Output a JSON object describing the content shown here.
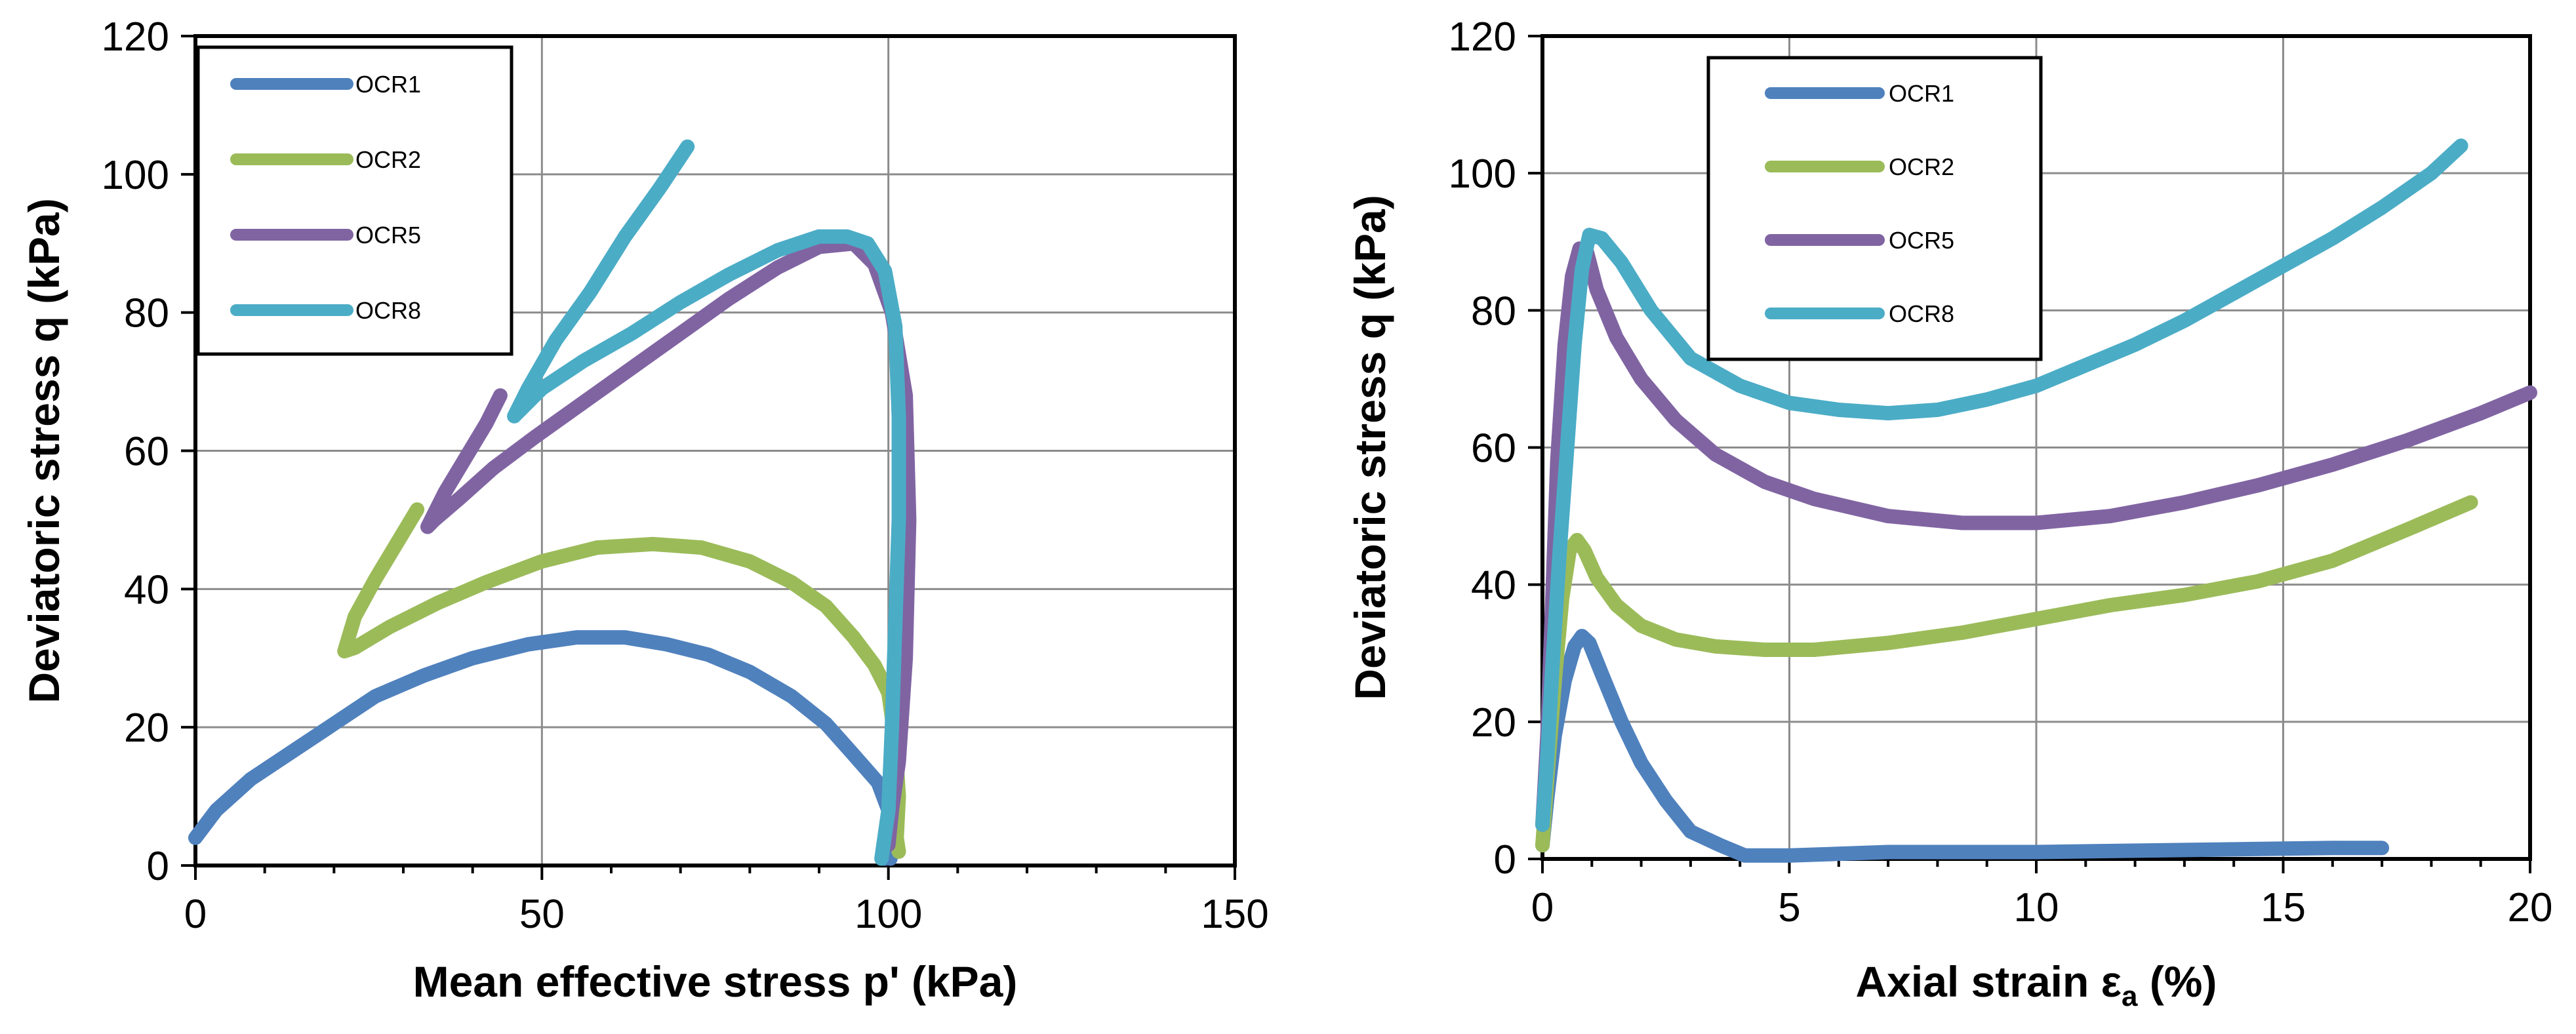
{
  "chart_data": [
    {
      "type": "line",
      "xlabel": "Mean effective stress p' (kPa)",
      "ylabel": "Deviatoric stress q (kPa)",
      "xlim": [
        0,
        150
      ],
      "ylim": [
        0,
        120
      ],
      "xticks": [
        0,
        50,
        100,
        150
      ],
      "xtick_labels": [
        "0",
        "50",
        "100",
        "150"
      ],
      "yticks": [
        0,
        20,
        40,
        60,
        80,
        100,
        120
      ],
      "ytick_labels": [
        "0",
        "20",
        "40",
        "60",
        "80",
        "100",
        "120"
      ],
      "grid": true,
      "legend": "top-left",
      "series": [
        {
          "name": "OCR1",
          "color": "#4F81BD",
          "x": [
            0,
            3,
            8,
            14,
            20,
            26,
            33,
            40,
            48,
            55,
            62,
            68,
            74,
            80,
            86,
            91,
            95,
            98.5,
            100,
            100.5,
            100.3,
            99.8,
            99.5
          ],
          "y": [
            4,
            8,
            12.5,
            16.5,
            20.5,
            24.5,
            27.5,
            30,
            32,
            33,
            33,
            32,
            30.5,
            28,
            24.5,
            20.5,
            16,
            12,
            8,
            4,
            1,
            3,
            1
          ]
        },
        {
          "name": "OCR2",
          "color": "#9BBB59",
          "x": [
            32,
            29,
            26,
            23,
            21.5,
            23,
            28,
            35,
            42,
            50,
            58,
            66,
            73,
            80,
            86,
            91,
            95,
            98,
            100,
            101,
            101.5,
            101.2,
            101.5
          ],
          "y": [
            51.5,
            46.5,
            41.5,
            36,
            31,
            31.5,
            34.5,
            38,
            41,
            44,
            46,
            46.5,
            46,
            44,
            41,
            37.5,
            33,
            29,
            25,
            18,
            10,
            4,
            2
          ]
        },
        {
          "name": "OCR5",
          "color": "#8064A2",
          "x": [
            44,
            42,
            39,
            36,
            34,
            33.5,
            34.5,
            38,
            43,
            49,
            56,
            63,
            70,
            77,
            84,
            90,
            95,
            98,
            100.5,
            102.5,
            103,
            102.5,
            101.5,
            100.5,
            100
          ],
          "y": [
            68,
            64,
            59,
            54,
            50,
            49,
            50,
            53,
            57.5,
            62,
            67,
            72,
            77,
            82,
            86.5,
            89.5,
            90,
            87,
            80,
            68,
            50,
            30,
            15,
            8,
            3
          ]
        },
        {
          "name": "OCR8",
          "color": "#4BACC6",
          "x": [
            71,
            67,
            62,
            57,
            52,
            48,
            46,
            47,
            50,
            56,
            63,
            70,
            77,
            84,
            90,
            94,
            97,
            99.5,
            101,
            101.5,
            101.5,
            101,
            100.5,
            100,
            99
          ],
          "y": [
            104,
            98,
            91,
            83,
            76,
            69,
            65,
            66,
            69,
            73,
            77,
            81.5,
            85.5,
            89,
            91,
            91,
            90,
            86,
            78,
            65,
            50,
            35,
            20,
            8,
            1
          ]
        }
      ]
    },
    {
      "type": "line",
      "xlabel": "Axial strain ε",
      "xlabel_sub": "a",
      "xlabel_suffix": " (%)",
      "ylabel": "Deviatoric stress q (kPa)",
      "xlim": [
        0,
        20
      ],
      "ylim": [
        0,
        120
      ],
      "xticks": [
        0,
        5,
        10,
        15,
        20
      ],
      "xtick_labels": [
        "0",
        "5",
        "10",
        "15",
        "20"
      ],
      "yticks": [
        0,
        20,
        40,
        60,
        80,
        100,
        120
      ],
      "ytick_labels": [
        "0",
        "20",
        "40",
        "60",
        "80",
        "100",
        "120"
      ],
      "grid": true,
      "legend": "top-left",
      "series": [
        {
          "name": "OCR1",
          "color": "#4F81BD",
          "x": [
            0,
            0.1,
            0.25,
            0.45,
            0.65,
            0.8,
            0.95,
            1.2,
            1.6,
            2.0,
            2.5,
            3.0,
            3.6,
            4.1,
            5,
            7,
            10,
            13,
            16,
            17
          ],
          "y": [
            2,
            9,
            18,
            26,
            31,
            32.5,
            31.5,
            27,
            20,
            14,
            8.5,
            4,
            2,
            0.5,
            0.5,
            1,
            1,
            1.3,
            1.6,
            1.6
          ]
        },
        {
          "name": "OCR2",
          "color": "#9BBB59",
          "x": [
            0,
            0.1,
            0.25,
            0.4,
            0.55,
            0.7,
            0.85,
            1.1,
            1.5,
            2.0,
            2.7,
            3.5,
            4.5,
            5.5,
            7,
            8.5,
            10,
            11.5,
            13,
            14.5,
            16,
            17.5,
            18.8
          ],
          "y": [
            2,
            12,
            26,
            38,
            45,
            46.5,
            45,
            41,
            37,
            34,
            32,
            31,
            30.5,
            30.5,
            31.5,
            33,
            35,
            37,
            38.5,
            40.5,
            43.5,
            48,
            52
          ]
        },
        {
          "name": "OCR5",
          "color": "#8064A2",
          "x": [
            0,
            0.1,
            0.2,
            0.3,
            0.45,
            0.6,
            0.75,
            0.9,
            1.1,
            1.5,
            2.0,
            2.7,
            3.5,
            4.5,
            5.5,
            7,
            8.5,
            10,
            11.5,
            13,
            14.5,
            16,
            17.5,
            19,
            20
          ],
          "y": [
            5,
            18,
            38,
            58,
            75,
            85,
            89,
            88.5,
            83,
            76,
            70,
            64,
            59,
            55,
            52.5,
            50,
            49,
            49,
            50,
            52,
            54.5,
            57.5,
            61,
            65,
            68
          ]
        },
        {
          "name": "OCR8",
          "color": "#4BACC6",
          "x": [
            0,
            0.1,
            0.2,
            0.35,
            0.5,
            0.65,
            0.8,
            0.95,
            1.2,
            1.6,
            2.2,
            3.0,
            4.0,
            5.0,
            6.0,
            7.0,
            8.0,
            9.0,
            10.0,
            11.0,
            12.0,
            13.0,
            14.0,
            15.0,
            16.0,
            17.0,
            18.0,
            18.6
          ],
          "y": [
            5,
            15,
            28,
            45,
            60,
            75,
            86,
            91,
            90.5,
            87,
            80,
            73,
            69,
            66.5,
            65.5,
            65,
            65.5,
            67,
            69,
            72,
            75,
            78.5,
            82.5,
            86.5,
            90.5,
            95,
            100,
            104
          ]
        }
      ]
    }
  ]
}
